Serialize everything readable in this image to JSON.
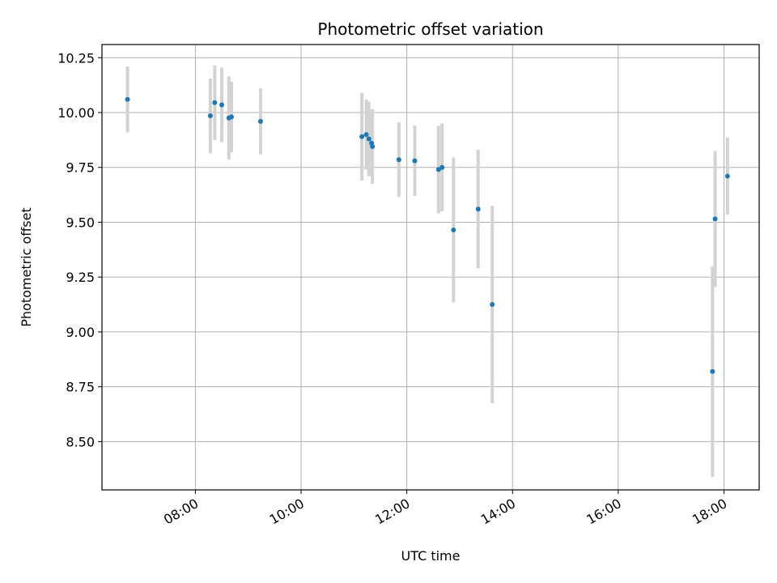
{
  "chart_data": {
    "type": "scatter",
    "title": "Photometric offset variation",
    "xlabel": "UTC time",
    "ylabel": "Photometric offset",
    "x_tick_labels": [
      "08:00",
      "10:00",
      "12:00",
      "14:00",
      "16:00",
      "18:00"
    ],
    "y_tick_labels": [
      "8.50",
      "8.75",
      "9.00",
      "9.25",
      "9.50",
      "9.75",
      "10.00",
      "10.25"
    ],
    "x_range": [
      "06:14",
      "18:40"
    ],
    "ylim": [
      8.28,
      10.31
    ],
    "grid": true,
    "marker_color": "#1f77b4",
    "errorbar_color": "#d3d3d3",
    "series": [
      {
        "points": [
          {
            "x": "06:43",
            "y": 10.06,
            "err": 0.15
          },
          {
            "x": "08:17",
            "y": 9.985,
            "err": 0.17
          },
          {
            "x": "08:22",
            "y": 10.045,
            "err": 0.17
          },
          {
            "x": "08:30",
            "y": 10.035,
            "err": 0.17
          },
          {
            "x": "08:38",
            "y": 9.975,
            "err": 0.19
          },
          {
            "x": "08:41",
            "y": 9.98,
            "err": 0.16
          },
          {
            "x": "09:14",
            "y": 9.96,
            "err": 0.15
          },
          {
            "x": "11:09",
            "y": 9.89,
            "err": 0.2
          },
          {
            "x": "11:14",
            "y": 9.9,
            "err": 0.16
          },
          {
            "x": "11:17",
            "y": 9.88,
            "err": 0.17
          },
          {
            "x": "11:20",
            "y": 9.86,
            "err": 0.15
          },
          {
            "x": "11:21",
            "y": 9.845,
            "err": 0.17
          },
          {
            "x": "11:51",
            "y": 9.785,
            "err": 0.17
          },
          {
            "x": "12:09",
            "y": 9.78,
            "err": 0.16
          },
          {
            "x": "12:36",
            "y": 9.74,
            "err": 0.2
          },
          {
            "x": "12:40",
            "y": 9.75,
            "err": 0.2
          },
          {
            "x": "12:53",
            "y": 9.465,
            "err": 0.33
          },
          {
            "x": "13:21",
            "y": 9.56,
            "err": 0.27
          },
          {
            "x": "13:37",
            "y": 9.125,
            "err": 0.45
          },
          {
            "x": "17:47",
            "y": 8.82,
            "err": 0.48
          },
          {
            "x": "17:50",
            "y": 9.515,
            "err": 0.31
          },
          {
            "x": "18:04",
            "y": 9.71,
            "err": 0.175
          }
        ]
      }
    ]
  }
}
